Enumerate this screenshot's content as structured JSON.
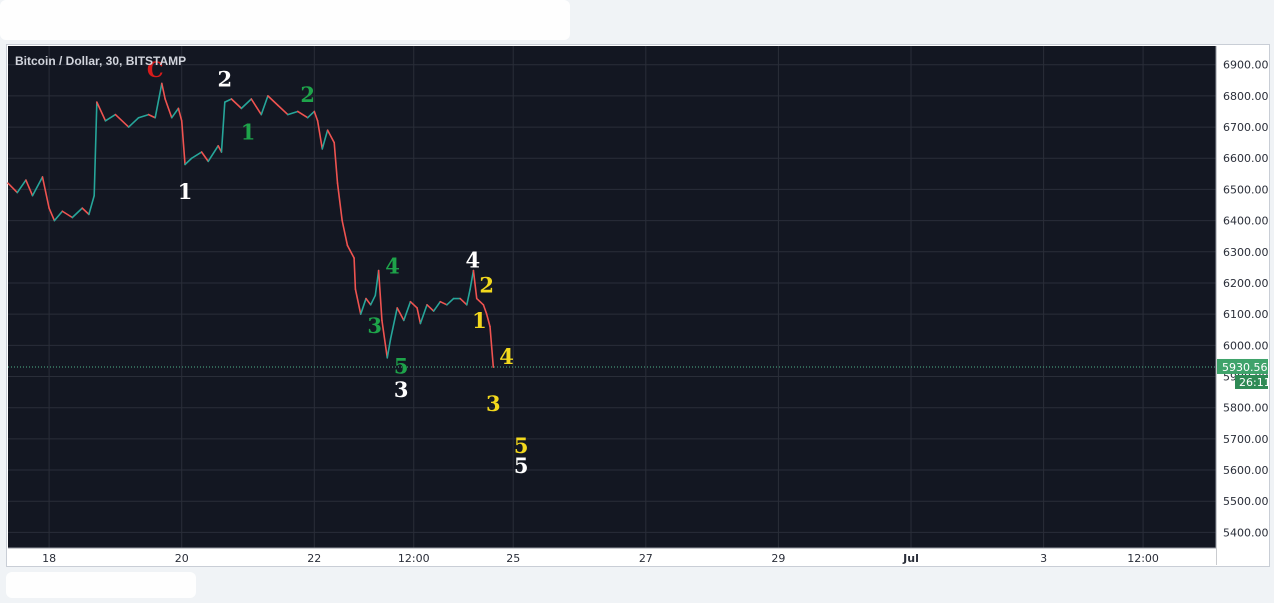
{
  "chart_data": {
    "type": "candlestick",
    "title": "Bitcoin / Dollar, 30, BITSTAMP",
    "colors": {
      "background": "#131722",
      "grid": "#2a2e39",
      "up": "#26a69a",
      "down": "#ef5350",
      "last_price_line": "#4fb389",
      "last_price_tag": "#3fa36b",
      "countdown_tag": "#2f8a55"
    },
    "y_ticks": [
      "6900.00",
      "6800.00",
      "6700.00",
      "6600.00",
      "6500.00",
      "6400.00",
      "6300.00",
      "6200.00",
      "6100.00",
      "6000.00",
      "5900.00",
      "5800.00",
      "5700.00",
      "5600.00",
      "5500.00",
      "5400.00"
    ],
    "ylim": [
      5350,
      6960
    ],
    "x_ticks": [
      {
        "label": "18",
        "t": 18.0,
        "bold": false
      },
      {
        "label": "20",
        "t": 20.0,
        "bold": false
      },
      {
        "label": "22",
        "t": 22.0,
        "bold": false
      },
      {
        "label": "12:00",
        "t": 23.5,
        "bold": false
      },
      {
        "label": "25",
        "t": 25.0,
        "bold": false
      },
      {
        "label": "27",
        "t": 27.0,
        "bold": false
      },
      {
        "label": "29",
        "t": 29.0,
        "bold": false
      },
      {
        "label": "Jul",
        "t": 31.0,
        "bold": true
      },
      {
        "label": "3",
        "t": 33.0,
        "bold": false
      },
      {
        "label": "12:00",
        "t": 34.5,
        "bold": false
      }
    ],
    "xlim": [
      17.38,
      35.6
    ],
    "last_price": 5930.56,
    "last_price_label": "5930.56",
    "countdown": "26:11",
    "price_path": [
      [
        17.38,
        6520
      ],
      [
        17.52,
        6490
      ],
      [
        17.65,
        6530
      ],
      [
        17.75,
        6480
      ],
      [
        17.9,
        6540
      ],
      [
        18.0,
        6440
      ],
      [
        18.08,
        6400
      ],
      [
        18.2,
        6430
      ],
      [
        18.35,
        6410
      ],
      [
        18.5,
        6440
      ],
      [
        18.6,
        6420
      ],
      [
        18.68,
        6480
      ],
      [
        18.72,
        6780
      ],
      [
        18.85,
        6720
      ],
      [
        19.0,
        6740
      ],
      [
        19.2,
        6700
      ],
      [
        19.35,
        6730
      ],
      [
        19.5,
        6740
      ],
      [
        19.6,
        6730
      ],
      [
        19.7,
        6840
      ],
      [
        19.75,
        6790
      ],
      [
        19.85,
        6730
      ],
      [
        19.95,
        6760
      ],
      [
        20.0,
        6720
      ],
      [
        20.05,
        6580
      ],
      [
        20.15,
        6600
      ],
      [
        20.3,
        6620
      ],
      [
        20.4,
        6590
      ],
      [
        20.55,
        6640
      ],
      [
        20.6,
        6620
      ],
      [
        20.65,
        6780
      ],
      [
        20.75,
        6790
      ],
      [
        20.9,
        6760
      ],
      [
        21.05,
        6790
      ],
      [
        21.2,
        6740
      ],
      [
        21.3,
        6800
      ],
      [
        21.45,
        6770
      ],
      [
        21.6,
        6740
      ],
      [
        21.75,
        6750
      ],
      [
        21.9,
        6730
      ],
      [
        22.0,
        6750
      ],
      [
        22.05,
        6720
      ],
      [
        22.12,
        6630
      ],
      [
        22.2,
        6690
      ],
      [
        22.3,
        6650
      ],
      [
        22.35,
        6520
      ],
      [
        22.42,
        6400
      ],
      [
        22.5,
        6320
      ],
      [
        22.6,
        6280
      ],
      [
        22.62,
        6180
      ],
      [
        22.7,
        6100
      ],
      [
        22.78,
        6150
      ],
      [
        22.85,
        6130
      ],
      [
        22.92,
        6160
      ],
      [
        22.97,
        6240
      ],
      [
        23.02,
        6080
      ],
      [
        23.1,
        5960
      ],
      [
        23.15,
        6020
      ],
      [
        23.25,
        6120
      ],
      [
        23.35,
        6080
      ],
      [
        23.45,
        6140
      ],
      [
        23.55,
        6120
      ],
      [
        23.6,
        6070
      ],
      [
        23.7,
        6130
      ],
      [
        23.8,
        6110
      ],
      [
        23.9,
        6140
      ],
      [
        24.0,
        6130
      ],
      [
        24.1,
        6150
      ],
      [
        24.2,
        6150
      ],
      [
        24.3,
        6130
      ],
      [
        24.35,
        6180
      ],
      [
        24.4,
        6240
      ],
      [
        24.45,
        6150
      ],
      [
        24.55,
        6130
      ],
      [
        24.6,
        6100
      ],
      [
        24.65,
        6060
      ],
      [
        24.7,
        5930
      ]
    ],
    "annotations": [
      {
        "text": "C",
        "t": 19.6,
        "price": 6860,
        "color": "#d81b1b"
      },
      {
        "text": "2",
        "t": 20.65,
        "price": 6830,
        "color": "#ffffff"
      },
      {
        "text": "1",
        "t": 20.05,
        "price": 6470,
        "color": "#ffffff"
      },
      {
        "text": "1",
        "t": 21.0,
        "price": 6660,
        "color": "#1ea34a"
      },
      {
        "text": "2",
        "t": 21.9,
        "price": 6780,
        "color": "#1ea34a"
      },
      {
        "text": "4",
        "t": 23.18,
        "price": 6230,
        "color": "#1ea34a"
      },
      {
        "text": "3",
        "t": 22.91,
        "price": 6040,
        "color": "#1ea34a"
      },
      {
        "text": "5",
        "t": 23.31,
        "price": 5910,
        "color": "#1ea34a"
      },
      {
        "text": "3",
        "t": 23.31,
        "price": 5835,
        "color": "#ffffff"
      },
      {
        "text": "4",
        "t": 24.39,
        "price": 6250,
        "color": "#ffffff"
      },
      {
        "text": "2",
        "t": 24.6,
        "price": 6170,
        "color": "#f2d81d"
      },
      {
        "text": "1",
        "t": 24.49,
        "price": 6055,
        "color": "#f2d81d"
      },
      {
        "text": "4",
        "t": 24.9,
        "price": 5940,
        "color": "#f2d81d"
      },
      {
        "text": "3",
        "t": 24.7,
        "price": 5790,
        "color": "#f2d81d"
      },
      {
        "text": "5",
        "t": 25.12,
        "price": 5655,
        "color": "#f2d81d"
      },
      {
        "text": "5",
        "t": 25.12,
        "price": 5590,
        "color": "#ffffff"
      }
    ]
  }
}
